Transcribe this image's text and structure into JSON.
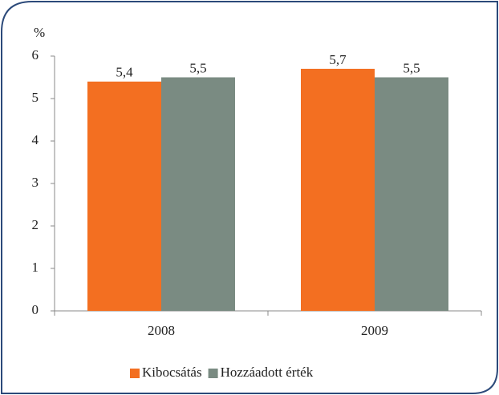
{
  "chart_data": {
    "type": "bar",
    "ylabel": "%",
    "categories": [
      "2008",
      "2009"
    ],
    "series": [
      {
        "name": "Kibocsátás",
        "color": "#f36f21",
        "values": [
          5.4,
          5.7
        ],
        "value_labels": [
          "5,4",
          "5,7"
        ]
      },
      {
        "name": "Hozzáadott érték",
        "color": "#7a8b82",
        "values": [
          5.5,
          5.5
        ],
        "value_labels": [
          "5,5",
          "5,5"
        ]
      }
    ],
    "ylim": [
      0,
      6
    ],
    "yticks": [
      0,
      1,
      2,
      3,
      4,
      5,
      6
    ],
    "grid": false,
    "legend": "bottom"
  }
}
